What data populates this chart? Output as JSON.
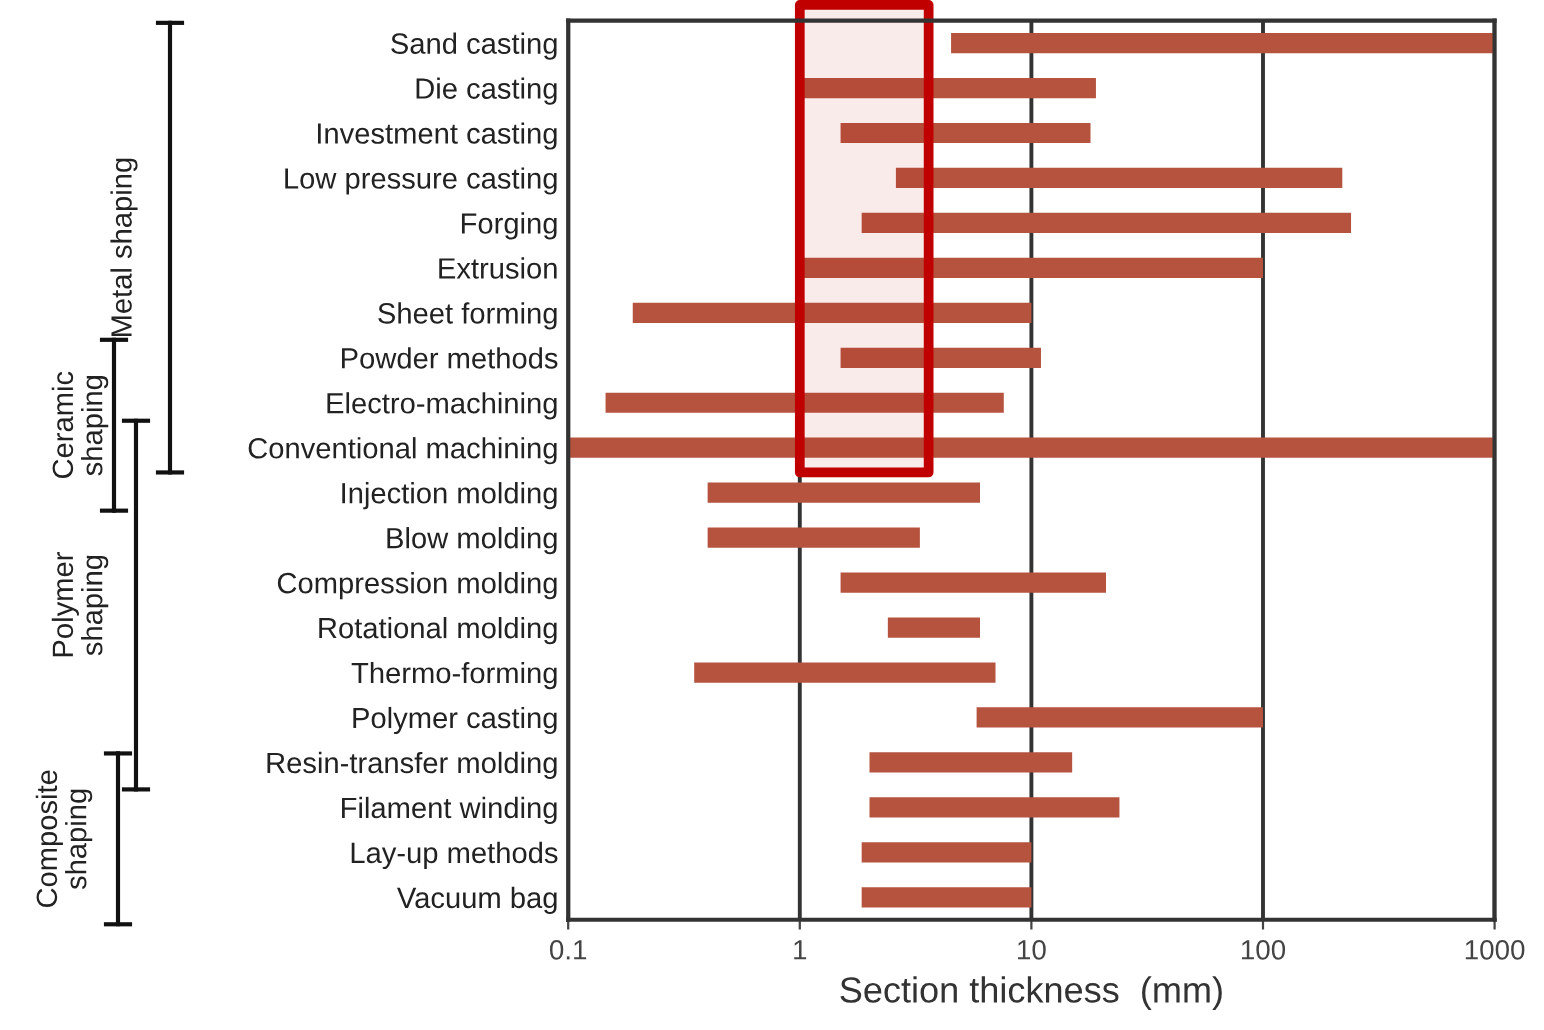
{
  "chart_data": {
    "type": "bar",
    "orientation": "horizontal",
    "xlabel": "Section thickness  (mm)",
    "categories": [
      "Sand casting",
      "Die casting",
      "Investment casting",
      "Low pressure casting",
      "Forging",
      "Extrusion",
      "Sheet forming",
      "Powder methods",
      "Electro-machining",
      "Conventional machining",
      "Injection molding",
      "Blow molding",
      "Compression molding",
      "Rotational molding",
      "Thermo-forming",
      "Polymer casting",
      "Resin-transfer molding",
      "Filament winding",
      "Lay-up methods",
      "Vacuum bag"
    ],
    "base": [
      4.5,
      1,
      1.5,
      2.6,
      1.85,
      1,
      0.19,
      1.5,
      0.145,
      0.1,
      0.4,
      0.4,
      1.5,
      2.4,
      0.35,
      5.8,
      2,
      2,
      1.85,
      1.85
    ],
    "values": [
      995.5,
      18,
      16.5,
      217.4,
      238.15,
      99,
      9.81,
      9.5,
      7.455,
      999.9,
      5.6,
      2.9,
      19.5,
      3.6,
      6.65,
      94.2,
      13,
      22,
      8.15,
      8.15
    ],
    "color": "#b5533f",
    "log": "x",
    "xlim": [
      0.1,
      1000
    ],
    "xticks": [
      0.1,
      1,
      10,
      100,
      1000
    ],
    "grid": "x",
    "bands": [
      {
        "axis": "x",
        "from": 1,
        "to": 3.6,
        "color": "#c00000"
      }
    ],
    "annotations": [
      "Metal shaping",
      "Ceramic\nshaping",
      "Polymer\nshaping",
      "Composite\nshaping"
    ]
  }
}
